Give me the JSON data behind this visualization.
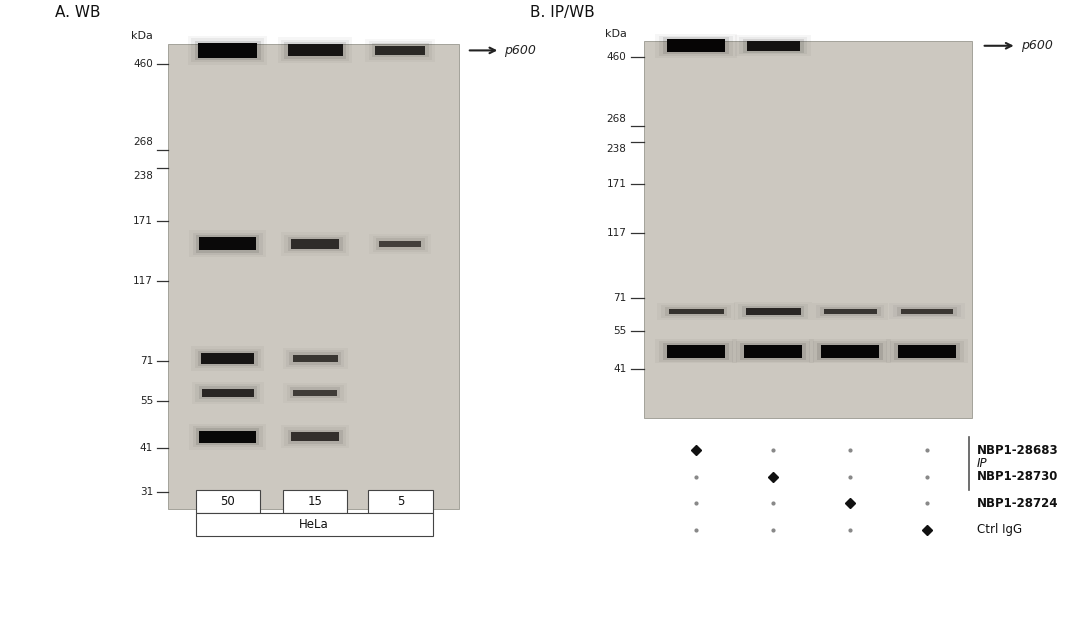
{
  "bg_color": "#f0eeeb",
  "gel_bg": "#d4d0c9",
  "gel_inner": "#c8c4bc",
  "panel_A_title": "A. WB",
  "panel_B_title": "B. IP/WB",
  "kda_label": "kDa",
  "p600_label": "p600",
  "mw_markers_A": [
    460,
    268,
    238,
    171,
    117,
    71,
    55,
    41,
    31
  ],
  "mw_markers_B": [
    460,
    268,
    238,
    171,
    117,
    71,
    55,
    41
  ],
  "sample_labels_A": [
    "50",
    "15",
    "5"
  ],
  "sample_group_A": "HeLa",
  "ip_rows": [
    "NBP1-28683",
    "NBP1-28730",
    "NBP1-28724",
    "Ctrl IgG"
  ],
  "ip_label": "IP",
  "plus_minus_B": [
    [
      "+",
      "-",
      "-",
      "-"
    ],
    [
      "-",
      "+",
      "-",
      "-"
    ],
    [
      "-",
      "-",
      "+",
      "-"
    ],
    [
      "-",
      "-",
      "-",
      "+"
    ]
  ],
  "figsize": [
    10.8,
    6.4
  ],
  "dpi": 100
}
